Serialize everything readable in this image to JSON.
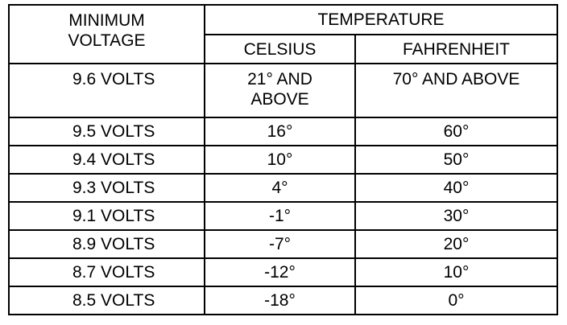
{
  "table": {
    "header": {
      "minimum_voltage": "MINIMUM VOLTAGE",
      "temperature": "TEMPERATURE",
      "celsius": "CELSIUS",
      "fahrenheit": "FAHRENHEIT"
    },
    "rows": [
      [
        "9.6 VOLTS",
        "21° AND ABOVE",
        "70° AND ABOVE"
      ],
      [
        "9.5 VOLTS",
        "16°",
        "60°"
      ],
      [
        "9.4 VOLTS",
        "10°",
        "50°"
      ],
      [
        "9.3 VOLTS",
        "4°",
        "40°"
      ],
      [
        "9.1 VOLTS",
        "-1°",
        "30°"
      ],
      [
        "8.9 VOLTS",
        "-7°",
        "20°"
      ],
      [
        "8.7 VOLTS",
        "-12°",
        "10°"
      ],
      [
        "8.5 VOLTS",
        "-18°",
        "0°"
      ]
    ]
  }
}
